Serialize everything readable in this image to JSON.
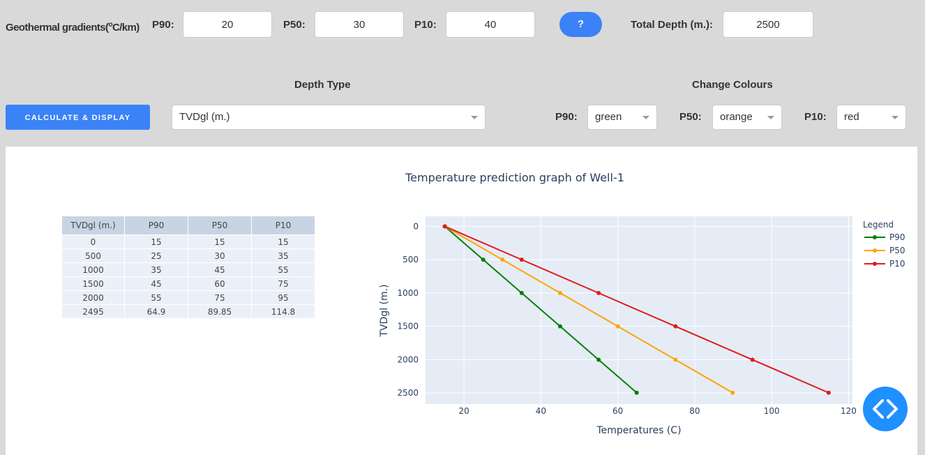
{
  "header": {
    "gradients_label": "Geothermal gradients(",
    "gradients_sup": "o",
    "gradients_unit": "C/km)",
    "p90_label": "P90:",
    "p90_value": "20",
    "p50_label": "P50:",
    "p50_value": "30",
    "p10_label": "P10:",
    "p10_value": "40",
    "help_label": "?",
    "total_depth_label": "Total Depth (m.):",
    "total_depth_value": "2500"
  },
  "controls": {
    "depth_type_heading": "Depth Type",
    "change_colours_heading": "Change Colours",
    "calculate_label": "CALCULATE & DISPLAY",
    "depth_type_value": "TVDgl (m.)",
    "p90_label": "P90:",
    "p90_color": "green",
    "p50_label": "P50:",
    "p50_color": "orange",
    "p10_label": "P10:",
    "p10_color": "red"
  },
  "table": {
    "headers": [
      "TVDgl (m.)",
      "P90",
      "P50",
      "P10"
    ],
    "rows": [
      [
        "0",
        "15",
        "15",
        "15"
      ],
      [
        "500",
        "25",
        "30",
        "35"
      ],
      [
        "1000",
        "35",
        "45",
        "55"
      ],
      [
        "1500",
        "45",
        "60",
        "75"
      ],
      [
        "2000",
        "55",
        "75",
        "95"
      ],
      [
        "2495",
        "64.9",
        "89.85",
        "114.8"
      ]
    ]
  },
  "chart_data": {
    "type": "line",
    "title": "Temperature prediction graph of Well-1",
    "xlabel": "Temperatures (C)",
    "ylabel": "TVDgl (m.)",
    "xlim": [
      10,
      121
    ],
    "ylim": [
      2665,
      -150
    ],
    "y_reversed": true,
    "grid": true,
    "x_ticks": [
      20,
      40,
      60,
      80,
      100,
      120
    ],
    "y_ticks": [
      0,
      500,
      1000,
      1500,
      2000,
      2500
    ],
    "legend_title": "Legend",
    "legend_position": "top-right",
    "series": [
      {
        "name": "P90",
        "color": "#008000",
        "x": [
          15,
          25,
          35,
          45,
          55,
          64.9
        ],
        "y": [
          0,
          500,
          1000,
          1500,
          2000,
          2495
        ]
      },
      {
        "name": "P50",
        "color": "#ffa500",
        "x": [
          15,
          30,
          45,
          60,
          75,
          89.85
        ],
        "y": [
          0,
          500,
          1000,
          1500,
          2000,
          2495
        ]
      },
      {
        "name": "P10",
        "color": "#e31a1c",
        "x": [
          15,
          35,
          55,
          75,
          95,
          114.8
        ],
        "y": [
          0,
          500,
          1000,
          1500,
          2000,
          2495
        ]
      }
    ]
  },
  "icons": {
    "fab": "code-brackets-icon",
    "caret": "chevron-down-icon"
  }
}
